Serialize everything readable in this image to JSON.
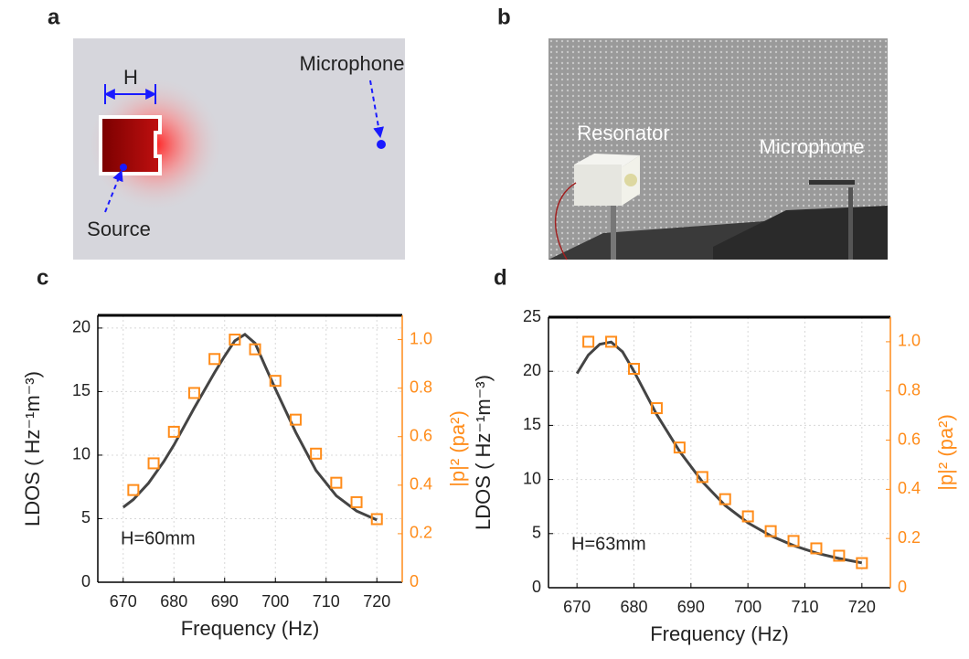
{
  "panels": {
    "labels": [
      "a",
      "b",
      "c",
      "d"
    ],
    "simulation": {
      "width_label": "H",
      "microphone": "Microphone",
      "source": "Source"
    },
    "photo": {
      "resonator": "Resonator",
      "microphone": "Microphone"
    }
  },
  "chart_data": [
    {
      "type": "line",
      "xlabel": "Frequency (Hz)",
      "ylabel": "LDOS ( Hz⁻¹m⁻³)",
      "y2label": "|p|² (pa²)",
      "annotation": "H=60mm",
      "xlim": [
        665,
        725
      ],
      "xticks": [
        670,
        680,
        690,
        700,
        710,
        720
      ],
      "ylim": [
        0,
        21
      ],
      "yticks": [
        0,
        5,
        10,
        15,
        20
      ],
      "y2lim": [
        0,
        1.1
      ],
      "y2ticks": [
        0,
        0.2,
        0.4,
        0.6,
        0.8,
        {
          "value": 1,
          "label": "1.0"
        }
      ],
      "grid": true,
      "series": [
        {
          "color": "#444444",
          "x": [
            670,
            672,
            675,
            678,
            680,
            684,
            688,
            690,
            692,
            694,
            696,
            698,
            700,
            704,
            708,
            712,
            716,
            720
          ],
          "values": [
            5.9,
            6.5,
            7.8,
            9.5,
            10.8,
            13.7,
            16.5,
            17.8,
            19.0,
            19.5,
            18.8,
            17.0,
            15.2,
            11.8,
            8.8,
            6.8,
            5.6,
            4.9
          ]
        },
        {
          "color": "#ff8c1a",
          "axis": "y2",
          "marker": "square",
          "x": [
            672,
            676,
            680,
            684,
            688,
            692,
            696,
            700,
            704,
            708,
            712,
            716,
            720
          ],
          "values": [
            0.38,
            0.49,
            0.62,
            0.78,
            0.92,
            1.0,
            0.96,
            0.83,
            0.67,
            0.53,
            0.41,
            0.33,
            0.26
          ]
        }
      ]
    },
    {
      "type": "line",
      "xlabel": "Frequency (Hz)",
      "ylabel": "LDOS ( Hz⁻¹m⁻³)",
      "y2label": "|p|² (pa²)",
      "annotation": "H=63mm",
      "xlim": [
        665,
        725
      ],
      "xticks": [
        670,
        680,
        690,
        700,
        710,
        720
      ],
      "ylim": [
        0,
        25
      ],
      "yticks": [
        0,
        5,
        10,
        15,
        20,
        25
      ],
      "y2lim": [
        0,
        1.1
      ],
      "y2ticks": [
        0,
        0.2,
        0.4,
        0.6,
        0.8,
        {
          "value": 1,
          "label": "1.0"
        }
      ],
      "grid": true,
      "series": [
        {
          "color": "#444444",
          "x": [
            670,
            672,
            674,
            676,
            678,
            680,
            684,
            688,
            692,
            696,
            700,
            704,
            708,
            712,
            716,
            720
          ],
          "values": [
            19.8,
            21.5,
            22.5,
            22.7,
            21.8,
            20.0,
            16.0,
            12.6,
            9.8,
            7.6,
            6.0,
            4.8,
            3.9,
            3.2,
            2.7,
            2.3
          ]
        },
        {
          "color": "#ff8c1a",
          "axis": "y2",
          "marker": "square",
          "x": [
            672,
            676,
            680,
            684,
            688,
            692,
            696,
            700,
            704,
            708,
            712,
            716,
            720
          ],
          "values": [
            1.0,
            1.0,
            0.89,
            0.73,
            0.57,
            0.45,
            0.36,
            0.29,
            0.23,
            0.19,
            0.16,
            0.13,
            0.1
          ]
        }
      ]
    }
  ]
}
